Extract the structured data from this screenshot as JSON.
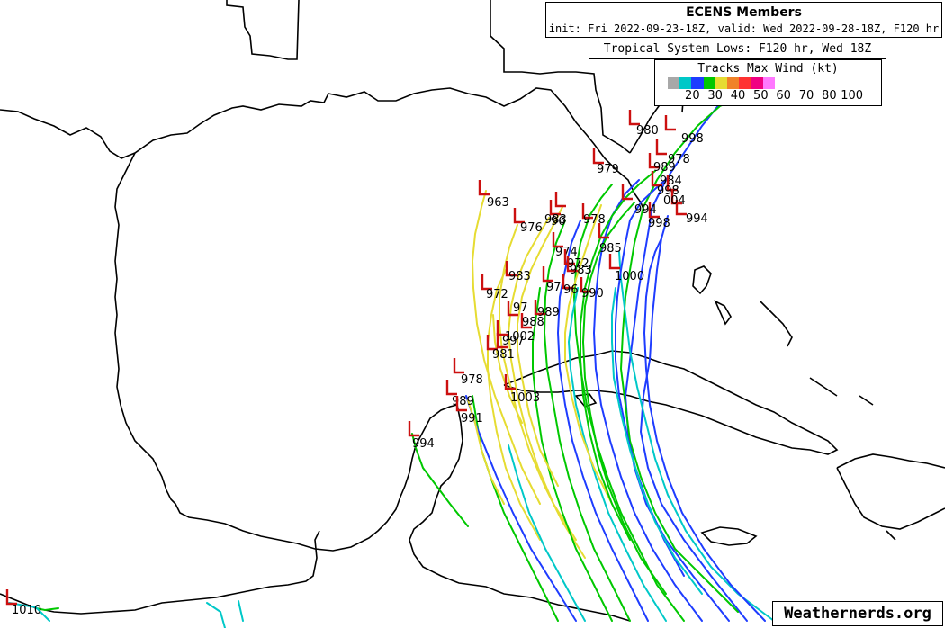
{
  "header": {
    "title": "ECENS Members",
    "subtitle": "init: Fri 2022-09-23-18Z, valid: Wed 2022-09-28-18Z, F120 hr"
  },
  "lows_label": "Tropical System Lows: F120 hr, Wed 18Z",
  "legend": {
    "title": "Tracks Max Wind (kt)",
    "colors": [
      "#a8a8a8",
      "#00c8c8",
      "#1e3cff",
      "#00c800",
      "#e6dc32",
      "#f08228",
      "#ff3232",
      "#f00082",
      "#ff78ff"
    ],
    "labels": [
      "20",
      "30",
      "40",
      "50",
      "60",
      "70",
      "80",
      "100"
    ]
  },
  "track_colors": {
    "cyan": "#00c8c8",
    "blue": "#1e3cff",
    "green": "#00c800",
    "yellow": "#e6dc32"
  },
  "pressures": [
    "980",
    "998",
    "978",
    "989",
    "984",
    "998",
    "994",
    "004",
    "998",
    "994",
    "979",
    "963",
    "976",
    "96",
    "983",
    "985",
    "978",
    "974",
    "972",
    "983",
    "1000",
    "972",
    "983",
    "97",
    "96",
    "990",
    "97",
    "989",
    "988",
    "1002",
    "997",
    "981",
    "978",
    "1003",
    "989",
    "991",
    "994",
    "1010"
  ],
  "watermark": "Weathernerds.org"
}
